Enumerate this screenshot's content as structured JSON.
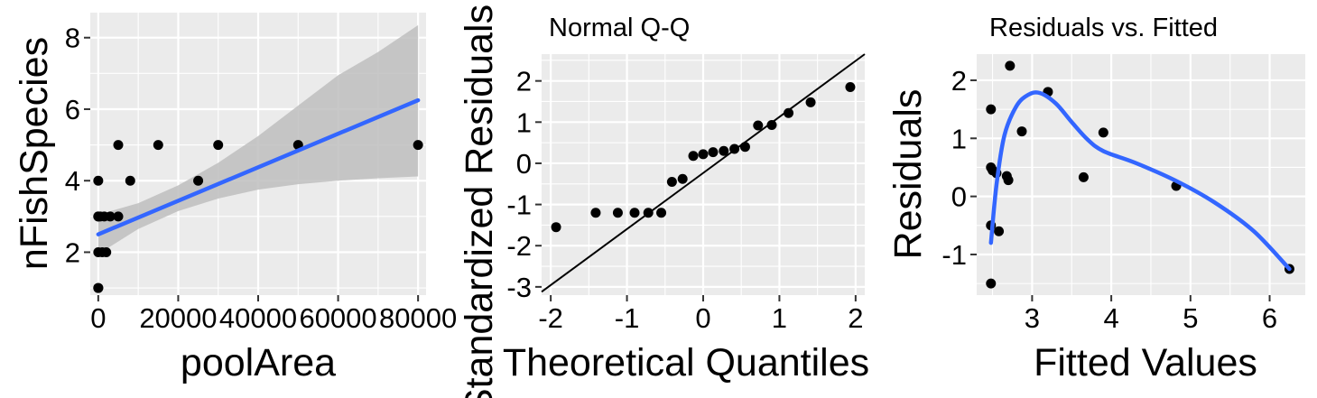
{
  "chart_data": [
    {
      "type": "scatter",
      "title": "",
      "xlabel": "poolArea",
      "ylabel": "nFishSpecies",
      "xlim": [
        -2000,
        82000
      ],
      "ylim": [
        0.8,
        8.7
      ],
      "x_ticks": [
        0,
        20000,
        40000,
        60000,
        80000
      ],
      "y_ticks": [
        2,
        4,
        6,
        8
      ],
      "x_tick_labels": [
        "0",
        "20000",
        "40000",
        "60000",
        "80000"
      ],
      "y_tick_labels": [
        "2",
        "4",
        "6",
        "8"
      ],
      "grid": true,
      "points": {
        "x": [
          0,
          0,
          0,
          0,
          0,
          0,
          500,
          1000,
          1500,
          2000,
          3000,
          5000,
          5000,
          8000,
          15000,
          25000,
          30000,
          50000,
          80000
        ],
        "y": [
          1,
          1,
          2,
          3,
          3,
          4,
          3,
          2,
          3,
          2,
          3,
          3,
          5,
          4,
          5,
          4,
          5,
          5,
          5
        ]
      },
      "fit_line": {
        "type": "lm",
        "color": "#3366ff",
        "x": [
          0,
          80000
        ],
        "y": [
          2.5,
          6.25
        ]
      },
      "confidence_band": {
        "color": "#bebebe",
        "x": [
          0,
          10000,
          20000,
          30000,
          40000,
          50000,
          60000,
          70000,
          80000
        ],
        "lower": [
          1.95,
          2.65,
          3.15,
          3.5,
          3.75,
          3.9,
          4.0,
          4.07,
          4.12
        ],
        "upper": [
          3.05,
          3.37,
          3.87,
          4.5,
          5.25,
          6.1,
          6.95,
          7.6,
          8.35
        ]
      }
    },
    {
      "type": "scatter",
      "title": "Normal Q-Q",
      "xlabel": "Theoretical Quantiles",
      "ylabel": "Standardized Residuals",
      "xlim": [
        -2.12,
        2.12
      ],
      "ylim": [
        -3.2,
        2.65
      ],
      "x_ticks": [
        -2,
        -1,
        0,
        1,
        2
      ],
      "y_ticks": [
        -3,
        -2,
        -1,
        0,
        1,
        2
      ],
      "x_tick_labels": [
        "-2",
        "-1",
        "0",
        "1",
        "2"
      ],
      "y_tick_labels": [
        "-3",
        "-2",
        "-1",
        "0",
        "1",
        "2"
      ],
      "grid": true,
      "points": {
        "x": [
          -1.93,
          -1.41,
          -1.12,
          -0.9,
          -0.72,
          -0.55,
          -0.41,
          -0.27,
          -0.13,
          0.0,
          0.13,
          0.27,
          0.41,
          0.55,
          0.72,
          0.9,
          1.12,
          1.41,
          1.93
        ],
        "y": [
          -1.55,
          -1.2,
          -1.2,
          -1.2,
          -1.2,
          -1.2,
          -0.45,
          -0.38,
          0.18,
          0.22,
          0.27,
          0.3,
          0.35,
          0.4,
          0.92,
          0.93,
          1.22,
          1.48,
          1.85
        ]
      },
      "reference_line": {
        "x": [
          -2.12,
          2.12
        ],
        "y": [
          -3.12,
          2.65
        ]
      }
    },
    {
      "type": "scatter",
      "title": "Residuals vs. Fitted",
      "xlabel": "Fitted Values",
      "ylabel": "Residuals",
      "xlim": [
        2.3,
        6.45
      ],
      "ylim": [
        -1.7,
        2.45
      ],
      "x_ticks": [
        3,
        4,
        5,
        6
      ],
      "y_ticks": [
        -1,
        0,
        1,
        2
      ],
      "x_tick_labels": [
        "3",
        "4",
        "5",
        "6"
      ],
      "y_tick_labels": [
        "-1",
        "0",
        "1",
        "2"
      ],
      "grid": true,
      "points": {
        "x": [
          2.48,
          2.48,
          2.48,
          2.48,
          2.5,
          2.55,
          2.58,
          2.68,
          2.7,
          2.72,
          2.87,
          3.2,
          3.65,
          3.9,
          4.82,
          6.25
        ],
        "y": [
          -1.5,
          -0.5,
          0.5,
          1.5,
          0.45,
          0.4,
          -0.6,
          0.35,
          0.28,
          2.25,
          1.12,
          1.8,
          0.33,
          1.1,
          0.18,
          -1.25
        ]
      },
      "smooth_line": {
        "type": "loess",
        "color": "#3366ff",
        "x": [
          2.48,
          2.55,
          2.65,
          2.8,
          2.95,
          3.1,
          3.3,
          3.5,
          3.7,
          3.9,
          4.3,
          4.8,
          5.3,
          5.8,
          6.25
        ],
        "y": [
          -0.8,
          0.2,
          1.05,
          1.55,
          1.75,
          1.78,
          1.6,
          1.28,
          0.98,
          0.78,
          0.58,
          0.28,
          -0.1,
          -0.6,
          -1.25
        ]
      }
    }
  ]
}
